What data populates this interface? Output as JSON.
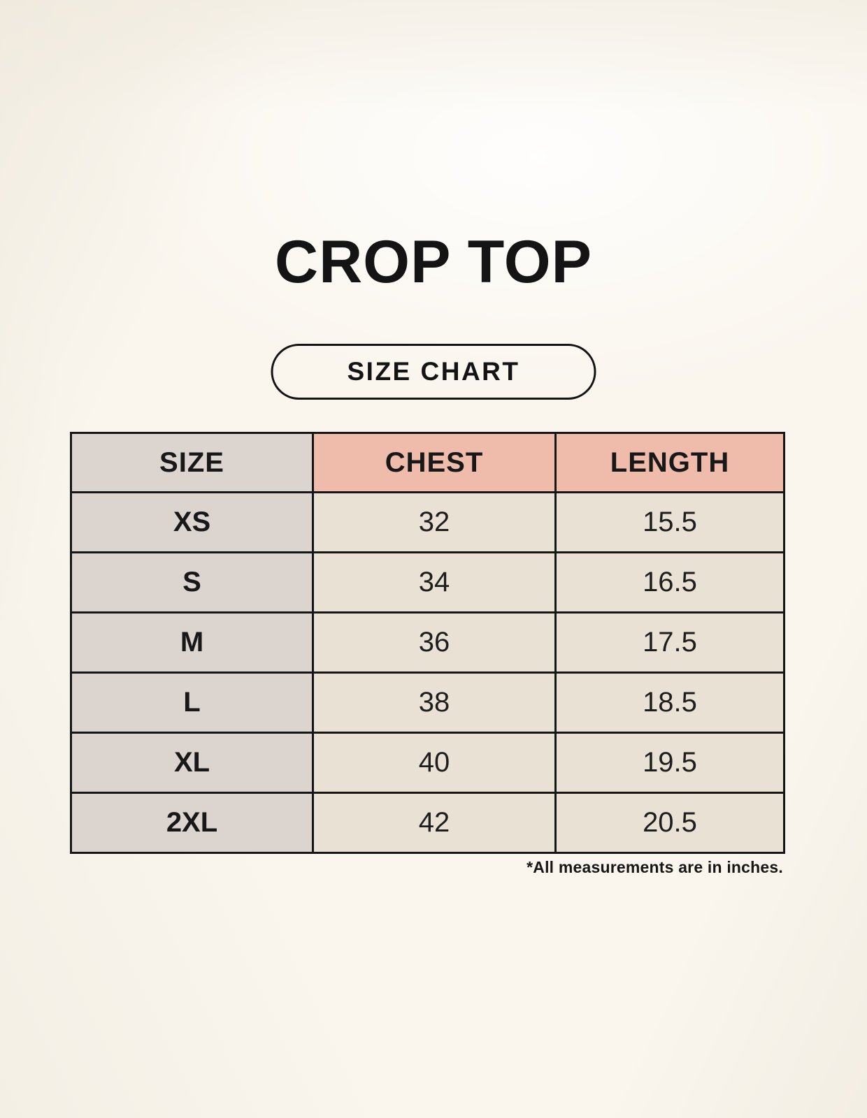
{
  "page": {
    "title": "CROP TOP",
    "badge_label": "SIZE CHART",
    "footnote": "*All measurements are in inches."
  },
  "colors": {
    "background": "#faf6ee",
    "header_pink": "#efbcac",
    "size_column_gray": "#dcd5cf",
    "value_cell_cream": "#e9e2d4",
    "border_black": "#161616"
  },
  "chart_data": {
    "type": "table",
    "title": "CROP TOP",
    "subtitle": "SIZE CHART",
    "columns": [
      "SIZE",
      "CHEST",
      "LENGTH"
    ],
    "rows": [
      {
        "size": "XS",
        "chest": "32",
        "length": "15.5"
      },
      {
        "size": "S",
        "chest": "34",
        "length": "16.5"
      },
      {
        "size": "M",
        "chest": "36",
        "length": "17.5"
      },
      {
        "size": "L",
        "chest": "38",
        "length": "18.5"
      },
      {
        "size": "XL",
        "chest": "40",
        "length": "19.5"
      },
      {
        "size": "2XL",
        "chest": "42",
        "length": "20.5"
      }
    ],
    "units": "inches",
    "note": "*All measurements are in inches."
  }
}
